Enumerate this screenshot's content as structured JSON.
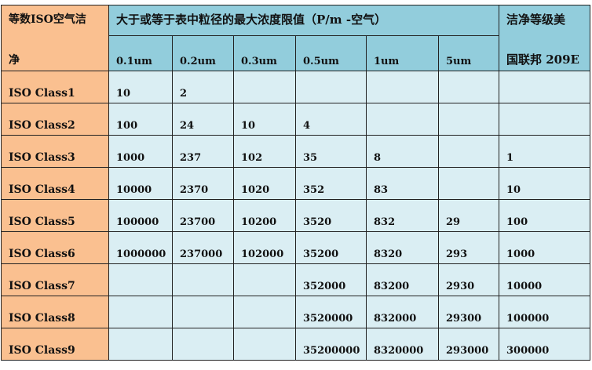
{
  "header": {
    "class_col_line1": "等数ISO空气洁",
    "class_col_line2": "净",
    "group_title": "大于或等于表中粒径的最大浓度限值（P/m  -空气）",
    "fed_col_line1": "洁净等级美",
    "fed_col_line2": "国联邦 209E",
    "sizes": [
      "0.1um",
      "0.2um",
      "0.3um",
      "0.5um",
      "1um",
      "5um"
    ]
  },
  "rows": [
    {
      "cls": "ISO  Class1",
      "v": [
        "10",
        "2",
        "",
        "",
        "",
        ""
      ],
      "fed": ""
    },
    {
      "cls": "ISO  Class2",
      "v": [
        "100",
        "24",
        "10",
        "4",
        "",
        ""
      ],
      "fed": ""
    },
    {
      "cls": "ISO  Class3",
      "v": [
        "1000",
        "237",
        "102",
        "35",
        "8",
        ""
      ],
      "fed": "1"
    },
    {
      "cls": "ISO  Class4",
      "v": [
        "10000",
        "2370",
        "1020",
        "352",
        "83",
        ""
      ],
      "fed": "10"
    },
    {
      "cls": "ISO  Class5",
      "v": [
        "100000",
        "23700",
        "10200",
        "3520",
        "832",
        "29"
      ],
      "fed": "100"
    },
    {
      "cls": "ISO  Class6",
      "v": [
        "1000000",
        "237000",
        "102000",
        "35200",
        "8320",
        "293"
      ],
      "fed": "1000"
    },
    {
      "cls": "ISO  Class7",
      "v": [
        "",
        "",
        "",
        "352000",
        "83200",
        "2930"
      ],
      "fed": "10000"
    },
    {
      "cls": "ISO  Class8",
      "v": [
        "",
        "",
        "",
        "3520000",
        "832000",
        "29300"
      ],
      "fed": "100000"
    },
    {
      "cls": "ISO  Class9",
      "v": [
        "",
        "",
        "",
        "35200000",
        "8320000",
        "293000"
      ],
      "fed": "300000"
    }
  ],
  "colors": {
    "class_column": "#FAC090",
    "header": "#92CDDC",
    "cells": "#DAEEF3"
  }
}
